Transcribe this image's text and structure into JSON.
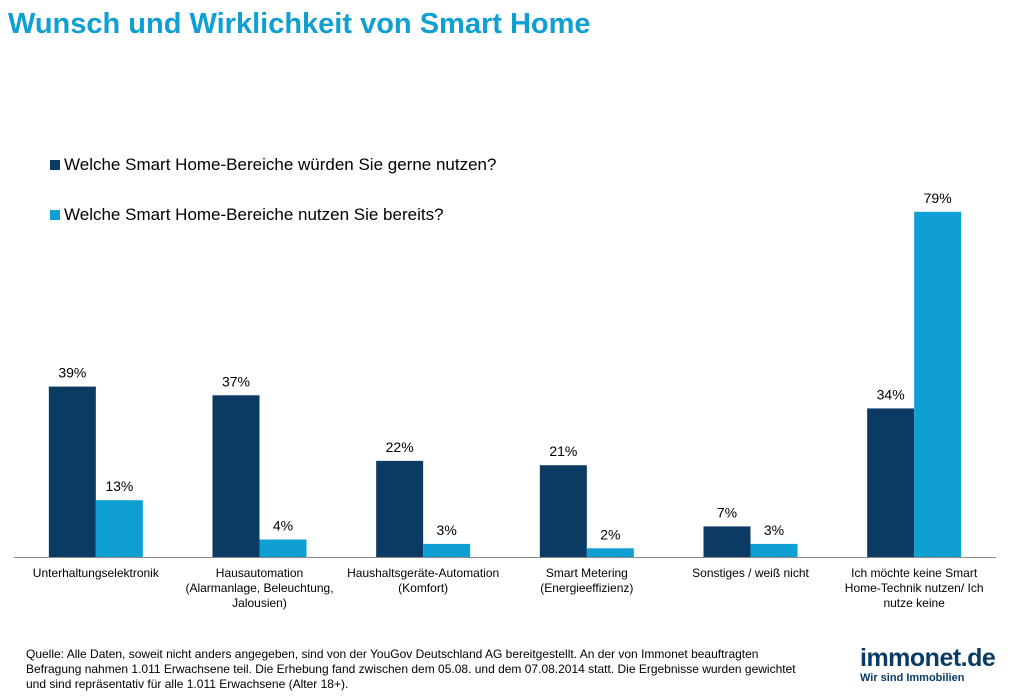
{
  "title": "Wunsch und Wirklichkeit von Smart Home",
  "chart_data": {
    "type": "bar",
    "title": "Wunsch und Wirklichkeit von Smart Home",
    "categories": [
      "Unterhaltungselektronik",
      "Hausautomation (Alarmanlage, Beleuchtung, Jalousien)",
      "Haushaltsgeräte-Automation (Komfort)",
      "Smart Metering (Energieeffizienz)",
      "Sonstiges / weiß nicht",
      "Ich möchte keine Smart Home-Technik nutzen/ Ich nutze keine"
    ],
    "category_lines": [
      [
        "Unterhaltungselektronik"
      ],
      [
        "Hausautomation",
        "(Alarmanlage, Beleuchtung,",
        "Jalousien)"
      ],
      [
        "Haushaltsgeräte-Automation",
        "(Komfort)"
      ],
      [
        "Smart Metering",
        "(Energieeffizienz)"
      ],
      [
        "Sonstiges / weiß nicht"
      ],
      [
        "Ich möchte keine Smart",
        "Home-Technik nutzen/ Ich",
        "nutze keine"
      ]
    ],
    "series": [
      {
        "name": "Welche Smart Home-Bereiche würden Sie gerne nutzen?",
        "color": "#0b3a63",
        "values": [
          39,
          37,
          22,
          21,
          7,
          34
        ]
      },
      {
        "name": "Welche Smart Home-Bereiche nutzen Sie bereits?",
        "color": "#0e9fd3",
        "values": [
          13,
          4,
          3,
          2,
          3,
          79
        ]
      }
    ],
    "value_suffix": "%",
    "ylim": [
      0,
      100
    ],
    "grid": false,
    "legend_position": "top-left"
  },
  "footer": "Quelle: Alle Daten, soweit nicht anders angegeben, sind von der YouGov Deutschland AG bereitgestellt. An der von Immonet beauftragten Befragung nahmen 1.011 Erwachsene teil. Die Erhebung fand zwischen dem 05.08. und dem 07.08.2014 statt. Die Ergebnisse wurden gewichtet und sind repräsentativ für alle 1.011 Erwachsene (Alter 18+).",
  "logo": {
    "main": "immonet.de",
    "sub": "Wir sind Immobilien"
  }
}
